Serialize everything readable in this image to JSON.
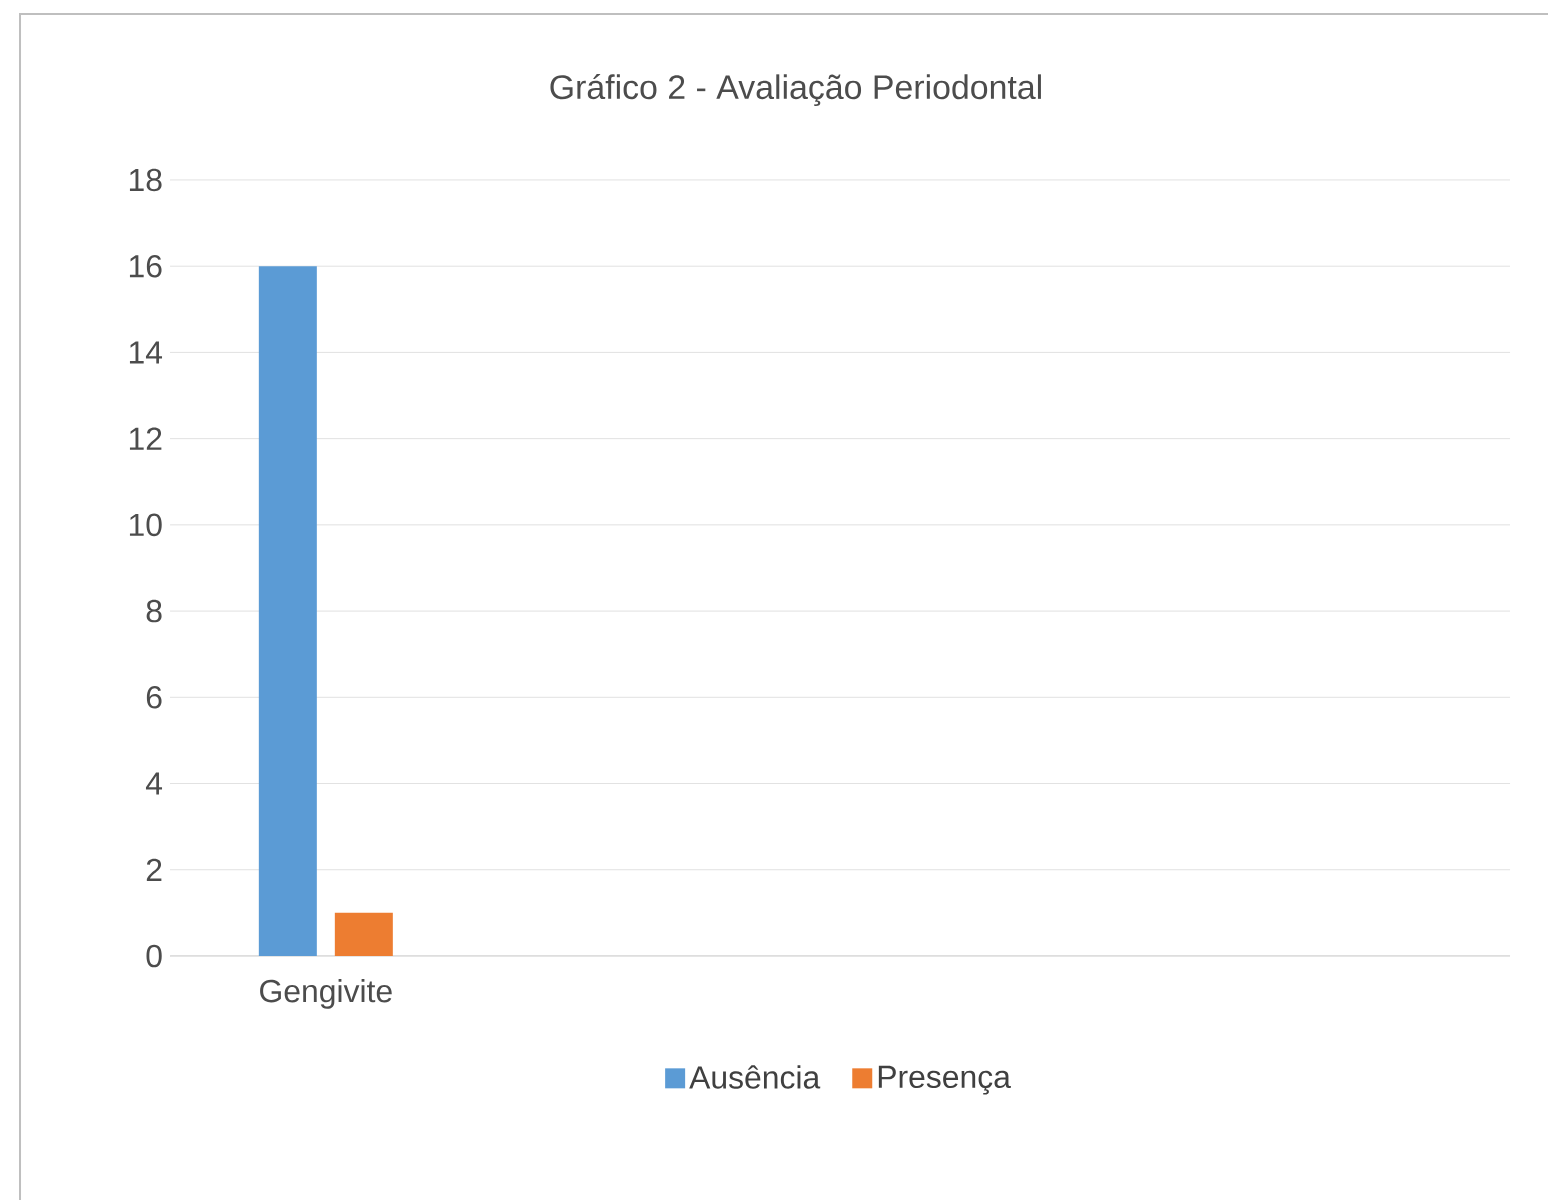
{
  "chart_data": {
    "type": "bar",
    "title": "Gráfico 2 - Avaliação Periodontal",
    "categories": [
      "Gengivite"
    ],
    "series": [
      {
        "name": "Ausência",
        "color": "#5b9bd5",
        "values": [
          16
        ]
      },
      {
        "name": "Presença",
        "color": "#ed7d31",
        "values": [
          1
        ]
      }
    ],
    "ylim": [
      0,
      18
    ],
    "yticks": [
      0,
      2,
      4,
      6,
      8,
      10,
      12,
      14,
      16,
      18
    ],
    "grid": "y",
    "legend": "bottom"
  }
}
